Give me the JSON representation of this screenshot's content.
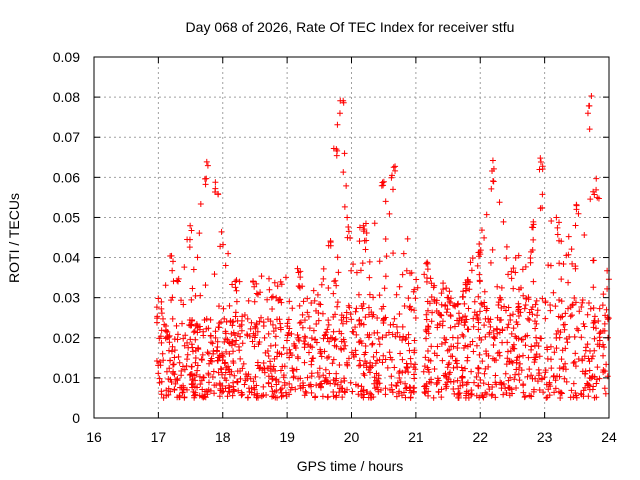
{
  "chart_data": {
    "type": "scatter",
    "title": "Day 068 of 2026, Rate Of TEC Index for receiver stfu",
    "xlabel": "GPS time / hours",
    "ylabel": "ROTI / TECUs",
    "xlim": [
      16,
      24
    ],
    "ylim": [
      0,
      0.09
    ],
    "grid": true,
    "marker": "+",
    "marker_color": "#ff0000",
    "x_ticks": [
      "16",
      "17",
      "18",
      "19",
      "20",
      "21",
      "22",
      "23",
      "24"
    ],
    "y_ticks": [
      "0",
      "0.01",
      "0.02",
      "0.03",
      "0.04",
      "0.05",
      "0.06",
      "0.07",
      "0.08",
      "0.09"
    ],
    "data_segments": [
      {
        "x_start": 16.97,
        "x_end": 19.68,
        "typical_range": [
          0.005,
          0.025
        ]
      },
      {
        "x_start": 19.7,
        "x_end": 21.0,
        "typical_range": [
          0.005,
          0.028
        ]
      },
      {
        "x_start": 21.12,
        "x_end": 24.0,
        "typical_range": [
          0.005,
          0.03
        ]
      }
    ],
    "envelope_x": [
      16.97,
      17.2,
      17.5,
      17.75,
      17.9,
      18.2,
      18.5,
      18.9,
      19.2,
      19.5,
      19.65,
      19.75,
      19.85,
      19.95,
      20.2,
      20.5,
      20.65,
      21.0,
      21.2,
      21.5,
      21.8,
      22.0,
      22.2,
      22.5,
      22.8,
      22.95,
      23.2,
      23.5,
      23.7,
      23.8,
      24.0
    ],
    "envelope_y": [
      0.03,
      0.041,
      0.048,
      0.064,
      0.061,
      0.035,
      0.036,
      0.034,
      0.038,
      0.032,
      0.045,
      0.07,
      0.08,
      0.05,
      0.05,
      0.06,
      0.063,
      0.035,
      0.04,
      0.033,
      0.037,
      0.045,
      0.065,
      0.038,
      0.05,
      0.066,
      0.05,
      0.055,
      0.081,
      0.06,
      0.037
    ]
  }
}
